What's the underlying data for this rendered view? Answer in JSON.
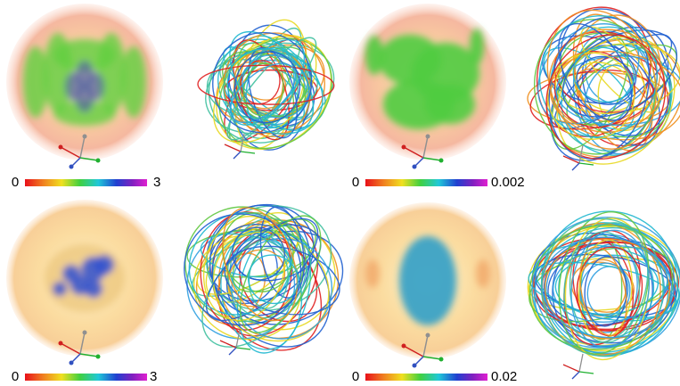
{
  "panels": [
    {
      "colorbar": {
        "min": "0",
        "max": "3"
      }
    },
    {
      "colorbar": {
        "min": "0",
        "max": "0.002"
      }
    },
    {
      "colorbar": {
        "min": "0",
        "max": "3"
      }
    },
    {
      "colorbar": {
        "min": "0",
        "max": "0.02"
      }
    }
  ]
}
